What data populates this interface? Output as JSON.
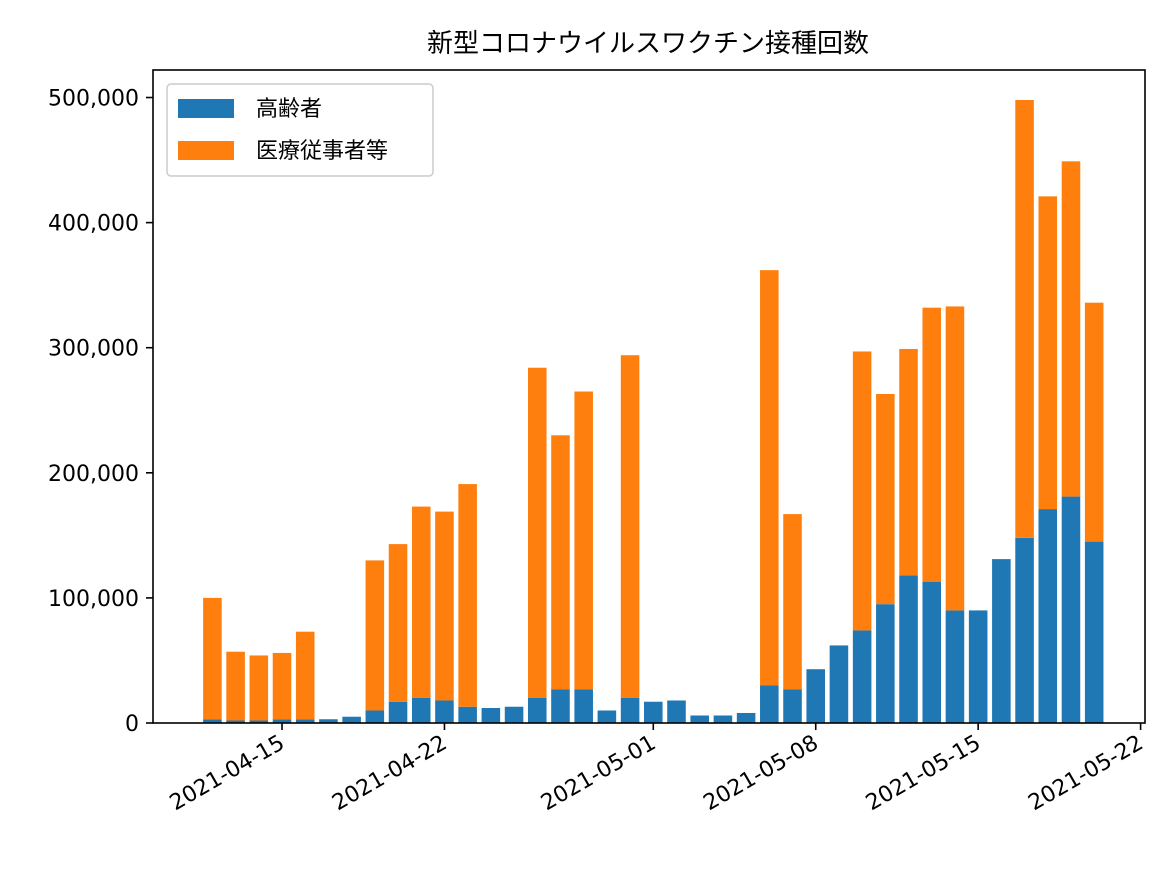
{
  "chart_data": {
    "type": "bar",
    "stacked": true,
    "title": "新型コロナウイルスワクチン接種回数",
    "xlabel": "",
    "ylabel": "",
    "x_axis_type": "date",
    "x": [
      "2021-04-12",
      "2021-04-13",
      "2021-04-14",
      "2021-04-15",
      "2021-04-16",
      "2021-04-17",
      "2021-04-18",
      "2021-04-19",
      "2021-04-20",
      "2021-04-21",
      "2021-04-22",
      "2021-04-23",
      "2021-04-24",
      "2021-04-25",
      "2021-04-26",
      "2021-04-27",
      "2021-04-28",
      "2021-04-29",
      "2021-04-30",
      "2021-05-01",
      "2021-05-02",
      "2021-05-03",
      "2021-05-04",
      "2021-05-05",
      "2021-05-06",
      "2021-05-07",
      "2021-05-08",
      "2021-05-09",
      "2021-05-10",
      "2021-05-11",
      "2021-05-12",
      "2021-05-13",
      "2021-05-14",
      "2021-05-15",
      "2021-05-16",
      "2021-05-17",
      "2021-05-18",
      "2021-05-19",
      "2021-05-20"
    ],
    "series": [
      {
        "name": "高齢者",
        "color": "#1f77b4",
        "values": [
          3000,
          2000,
          2000,
          3000,
          3000,
          3000,
          5000,
          10000,
          17000,
          20000,
          18000,
          13000,
          12000,
          13000,
          20000,
          27000,
          27000,
          10000,
          20000,
          17000,
          18000,
          6000,
          6000,
          8000,
          30000,
          27000,
          43000,
          62000,
          74000,
          95000,
          118000,
          113000,
          90000,
          90000,
          131000,
          148000,
          171000,
          181000,
          145000
        ]
      },
      {
        "name": "医療従事者等",
        "color": "#ff7f0e",
        "values": [
          97000,
          55000,
          52000,
          53000,
          70000,
          0,
          0,
          120000,
          126000,
          153000,
          151000,
          178000,
          0,
          0,
          264000,
          203000,
          238000,
          0,
          274000,
          0,
          0,
          0,
          0,
          0,
          332000,
          140000,
          0,
          0,
          223000,
          168000,
          181000,
          219000,
          243000,
          0,
          0,
          350000,
          250000,
          268000,
          191000
        ]
      }
    ],
    "ylim": [
      0,
      522000
    ],
    "xlim": [
      "2021-04-10",
      "2021-05-22"
    ],
    "yticks": [
      0,
      100000,
      200000,
      300000,
      400000,
      500000
    ],
    "ytick_labels": [
      "0",
      "100,000",
      "200,000",
      "300,000",
      "400,000",
      "500,000"
    ],
    "xticks": [
      "2021-04-15",
      "2021-04-22",
      "2021-05-01",
      "2021-05-08",
      "2021-05-15",
      "2021-05-22"
    ],
    "xtick_labels": [
      "2021-04-15",
      "2021-04-22",
      "2021-05-01",
      "2021-05-08",
      "2021-05-15",
      "2021-05-22"
    ],
    "legend": {
      "position": "top-left",
      "entries": [
        "高齢者",
        "医療従事者等"
      ]
    },
    "grid": false
  }
}
